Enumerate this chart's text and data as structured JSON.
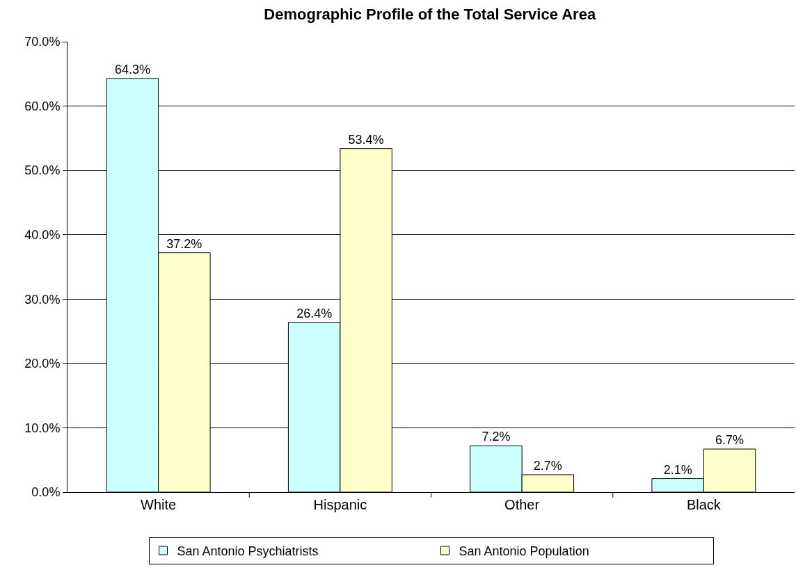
{
  "chart_data": {
    "type": "bar",
    "title": "Demographic Profile of the Total Service Area",
    "categories": [
      "White",
      "Hispanic",
      "Other",
      "Black"
    ],
    "series": [
      {
        "name": "San Antonio Psychiatrists",
        "color": "#ccffff",
        "values": [
          64.3,
          26.4,
          7.2,
          2.1
        ],
        "value_labels": [
          "64.3%",
          "26.4%",
          "7.2%",
          "2.1%"
        ]
      },
      {
        "name": "San Antonio Population",
        "color": "#ffffcc",
        "values": [
          37.2,
          53.4,
          2.7,
          6.7
        ],
        "value_labels": [
          "37.2%",
          "53.4%",
          "2.7%",
          "6.7%"
        ]
      }
    ],
    "ylim": [
      0,
      70
    ],
    "yticks": [
      {
        "value": 0,
        "label": "0.0%"
      },
      {
        "value": 10,
        "label": "10.0%"
      },
      {
        "value": 20,
        "label": "20.0%"
      },
      {
        "value": 30,
        "label": "30.0%"
      },
      {
        "value": 40,
        "label": "40.0%"
      },
      {
        "value": 50,
        "label": "50.0%"
      },
      {
        "value": 60,
        "label": "60.0%"
      },
      {
        "value": 70,
        "label": "70.0%"
      }
    ],
    "grid": "y",
    "legend": "bottom"
  }
}
